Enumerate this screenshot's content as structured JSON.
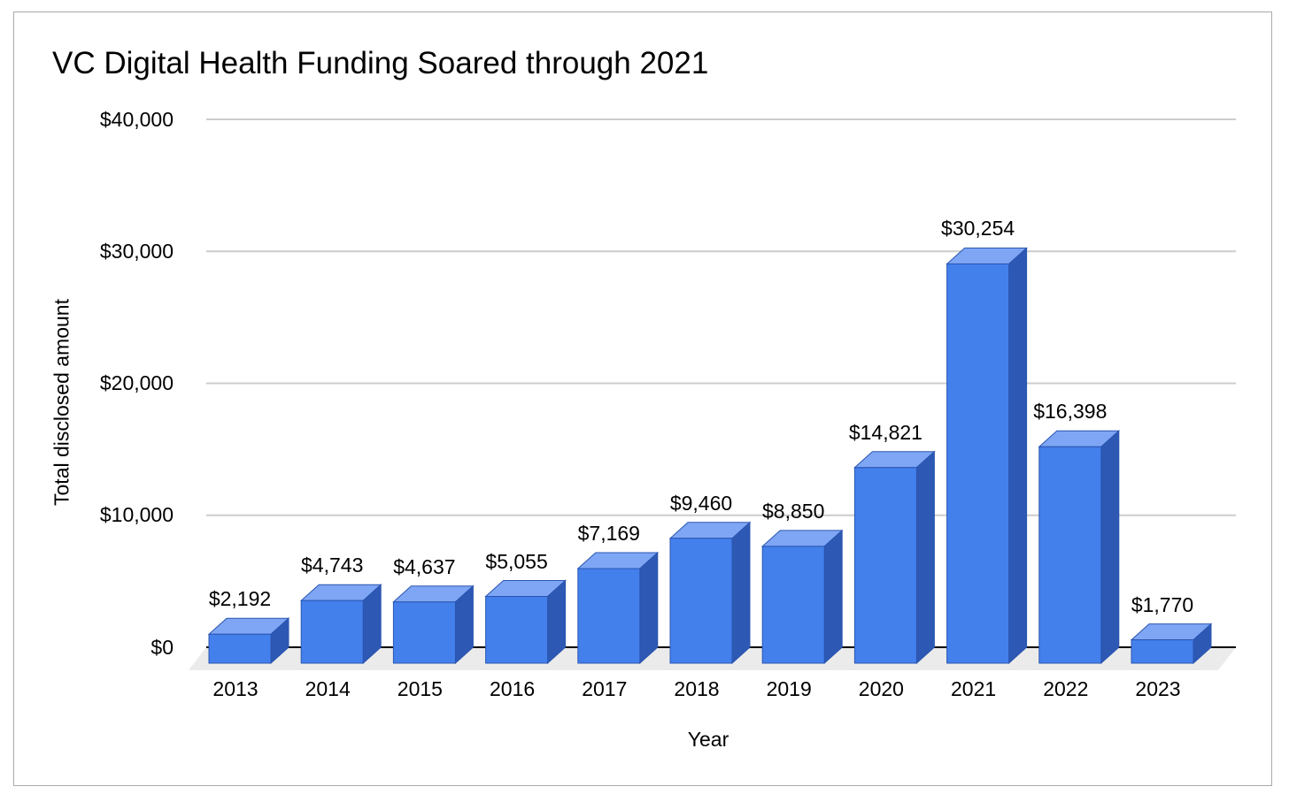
{
  "chart_data": {
    "type": "bar",
    "variant": "3d-column",
    "title": "VC Digital Health Funding Soared through 2021",
    "xlabel": "Year",
    "ylabel": "Total disclosed amount",
    "categories": [
      "2013",
      "2014",
      "2015",
      "2016",
      "2017",
      "2018",
      "2019",
      "2020",
      "2021",
      "2022",
      "2023"
    ],
    "values": [
      2192,
      4743,
      4637,
      5055,
      7169,
      9460,
      8850,
      14821,
      30254,
      16398,
      1770
    ],
    "value_labels": [
      "$2,192",
      "$4,743",
      "$4,637",
      "$5,055",
      "$7,169",
      "$9,460",
      "$8,850",
      "$14,821",
      "$30,254",
      "$16,398",
      "$1,770"
    ],
    "y_ticks": [
      {
        "value": 0,
        "label": "$0"
      },
      {
        "value": 10000,
        "label": "$10,000"
      },
      {
        "value": 20000,
        "label": "$20,000"
      },
      {
        "value": 30000,
        "label": "$30,000"
      },
      {
        "value": 40000,
        "label": "$40,000"
      }
    ],
    "ylim": [
      0,
      40000
    ],
    "grid": true,
    "legend": "none",
    "colors": {
      "bar_front": "#4480EC",
      "bar_top": "#7FA6F4",
      "bar_side": "#2D58B4",
      "bar_stroke": "#2A55B0",
      "floor": "#EBEBEB",
      "gridline": "#CCCCCC",
      "axis_line": "#000000",
      "text": "#000000",
      "frame_border": "#AAAAAA"
    }
  }
}
